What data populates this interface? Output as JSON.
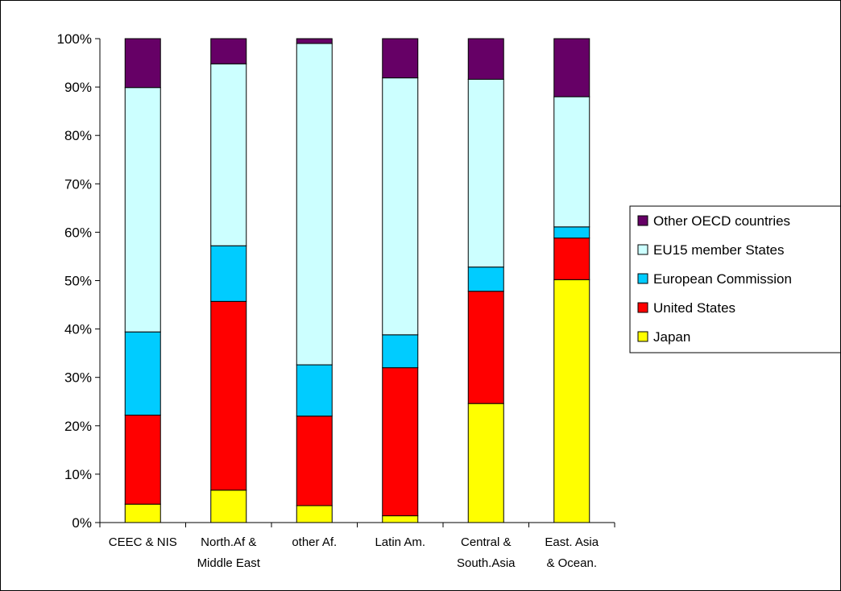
{
  "chart_data": {
    "type": "bar",
    "stacked": true,
    "title": "",
    "xlabel": "",
    "ylabel": "",
    "ylim": [
      0,
      100
    ],
    "y_ticks": [
      "0%",
      "10%",
      "20%",
      "30%",
      "40%",
      "50%",
      "60%",
      "70%",
      "80%",
      "90%",
      "100%"
    ],
    "y_tick_values": [
      0,
      10,
      20,
      30,
      40,
      50,
      60,
      70,
      80,
      90,
      100
    ],
    "grid": false,
    "legend_position": "right",
    "categories": [
      [
        "CEEC & NIS"
      ],
      [
        "North.Af &",
        "Middle East"
      ],
      [
        "other Af."
      ],
      [
        "Latin Am."
      ],
      [
        "Central &",
        "South.Asia"
      ],
      [
        "East. Asia",
        "& Ocean."
      ]
    ],
    "series": [
      {
        "name": "Japan",
        "color": "#FFFF00",
        "values": [
          3.8,
          6.7,
          3.5,
          1.4,
          24.6,
          50.2
        ]
      },
      {
        "name": "United States",
        "color": "#FF0000",
        "values": [
          18.4,
          39.0,
          18.5,
          30.6,
          23.2,
          8.6
        ]
      },
      {
        "name": "European Commission",
        "color": "#00CCFF",
        "values": [
          17.2,
          11.5,
          10.6,
          6.8,
          5.0,
          2.3
        ]
      },
      {
        "name": "EU15 member States",
        "color": "#CCFFFF",
        "values": [
          50.5,
          37.6,
          66.4,
          53.1,
          38.8,
          26.9
        ]
      },
      {
        "name": "Other OECD countries",
        "color": "#660066",
        "values": [
          10.1,
          5.2,
          1.0,
          8.1,
          8.4,
          12.0
        ]
      }
    ],
    "legend_order": [
      "Other OECD countries",
      "EU15 member States",
      "European Commission",
      "United States",
      "Japan"
    ]
  }
}
